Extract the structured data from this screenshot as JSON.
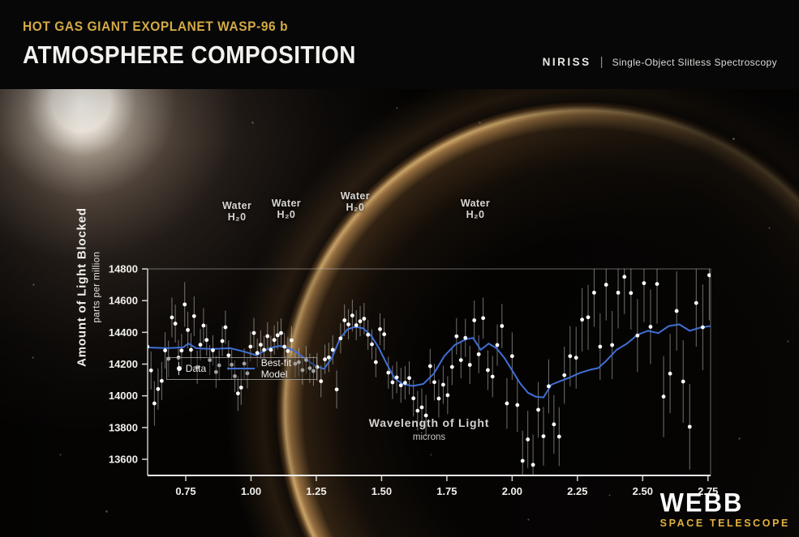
{
  "header": {
    "kicker": "HOT GAS GIANT EXOPLANET WASP-96 b",
    "title": "ATMOSPHERE COMPOSITION",
    "instrument": "NIRISS",
    "separator": "|",
    "mode": "Single-Object Slitless Spectroscopy"
  },
  "branding": {
    "name": "WEBB",
    "subtitle": "SPACE TELESCOPE"
  },
  "colors": {
    "accent_gold": "#d2a945",
    "model_blue": "#3f6fd4",
    "point_white": "#ffffff",
    "axis_text": "#f1efeb",
    "background": "#050403"
  },
  "chart_data": {
    "type": "scatter",
    "xlabel": "Wavelength of Light",
    "xlabel_sub": "microns",
    "ylabel": "Amount of Light Blocked",
    "ylabel_sub": "parts per million",
    "xlim": [
      0.604,
      2.76
    ],
    "ylim": [
      13498,
      14800
    ],
    "grid": false,
    "x_ticks": [
      0.75,
      1.0,
      1.25,
      1.5,
      1.75,
      2.0,
      2.25,
      2.5,
      2.75
    ],
    "x_tick_labels": [
      "0.75",
      "1.00",
      "1.25",
      "1.50",
      "1.75",
      "2.00",
      "2.25",
      "2.50",
      "2.75"
    ],
    "y_ticks": [
      14800,
      14600,
      14400,
      14200,
      14000,
      13800,
      13600
    ],
    "y_tick_labels": [
      "14800",
      "14600",
      "14400",
      "14200",
      "14000",
      "13800",
      "13600"
    ],
    "legend": {
      "position": "lower-left",
      "data_label": "Data",
      "model_label": "Best-fit Model"
    },
    "annotations": [
      {
        "line1": "Water",
        "line2": "H₂0",
        "x": 0.946,
        "y_top": 14672
      },
      {
        "line1": "Water",
        "line2": "H₂0",
        "x": 1.135,
        "y_top": 14688
      },
      {
        "line1": "Water",
        "line2": "H₂0",
        "x": 1.399,
        "y_top": 14735
      },
      {
        "line1": "Water",
        "line2": "H₂0",
        "x": 1.859,
        "y_top": 14688
      }
    ],
    "series": [
      {
        "name": "Data",
        "type": "scatter_errorbar",
        "points": [
          [
            0.603,
            14310,
            110
          ],
          [
            0.617,
            14160,
            120
          ],
          [
            0.63,
            13952,
            140
          ],
          [
            0.644,
            14043,
            130
          ],
          [
            0.658,
            14094,
            120
          ],
          [
            0.671,
            14286,
            115
          ],
          [
            0.684,
            14233,
            115
          ],
          [
            0.697,
            14494,
            125
          ],
          [
            0.71,
            14455,
            120
          ],
          [
            0.722,
            14240,
            110
          ],
          [
            0.734,
            14285,
            105
          ],
          [
            0.746,
            14576,
            140
          ],
          [
            0.758,
            14415,
            115
          ],
          [
            0.77,
            14290,
            105
          ],
          [
            0.782,
            14502,
            125
          ],
          [
            0.794,
            14180,
            105
          ],
          [
            0.806,
            14322,
            100
          ],
          [
            0.818,
            14443,
            110
          ],
          [
            0.83,
            14352,
            100
          ],
          [
            0.842,
            14225,
            95
          ],
          [
            0.854,
            14287,
            95
          ],
          [
            0.866,
            14150,
            100
          ],
          [
            0.878,
            14192,
            95
          ],
          [
            0.89,
            14345,
            95
          ],
          [
            0.902,
            14432,
            105
          ],
          [
            0.914,
            14255,
            95
          ],
          [
            0.926,
            14196,
            95
          ],
          [
            0.938,
            14124,
            100
          ],
          [
            0.95,
            14015,
            110
          ],
          [
            0.962,
            14052,
            110
          ],
          [
            0.974,
            14203,
            95
          ],
          [
            0.986,
            14142,
            95
          ],
          [
            0.998,
            14310,
            95
          ],
          [
            1.011,
            14396,
            95
          ],
          [
            1.024,
            14270,
            90
          ],
          [
            1.037,
            14322,
            90
          ],
          [
            1.05,
            14290,
            88
          ],
          [
            1.063,
            14376,
            88
          ],
          [
            1.076,
            14290,
            88
          ],
          [
            1.089,
            14352,
            92
          ],
          [
            1.102,
            14382,
            88
          ],
          [
            1.115,
            14396,
            92
          ],
          [
            1.128,
            14310,
            88
          ],
          [
            1.141,
            14282,
            88
          ],
          [
            1.155,
            14350,
            88
          ],
          [
            1.169,
            14202,
            88
          ],
          [
            1.183,
            14212,
            92
          ],
          [
            1.197,
            14162,
            92
          ],
          [
            1.211,
            14226,
            88
          ],
          [
            1.225,
            14174,
            92
          ],
          [
            1.239,
            14156,
            92
          ],
          [
            1.253,
            14182,
            88
          ],
          [
            1.268,
            14092,
            100
          ],
          [
            1.283,
            14230,
            92
          ],
          [
            1.298,
            14242,
            92
          ],
          [
            1.313,
            14290,
            92
          ],
          [
            1.328,
            14040,
            120
          ],
          [
            1.343,
            14362,
            95
          ],
          [
            1.358,
            14476,
            100
          ],
          [
            1.373,
            14450,
            95
          ],
          [
            1.388,
            14506,
            100
          ],
          [
            1.403,
            14445,
            95
          ],
          [
            1.418,
            14470,
            95
          ],
          [
            1.433,
            14486,
            100
          ],
          [
            1.448,
            14385,
            95
          ],
          [
            1.463,
            14325,
            95
          ],
          [
            1.478,
            14212,
            95
          ],
          [
            1.494,
            14420,
            100
          ],
          [
            1.51,
            14388,
            100
          ],
          [
            1.526,
            14146,
            100
          ],
          [
            1.542,
            14085,
            105
          ],
          [
            1.558,
            14116,
            100
          ],
          [
            1.574,
            14066,
            110
          ],
          [
            1.59,
            14082,
            105
          ],
          [
            1.606,
            14112,
            105
          ],
          [
            1.622,
            13984,
            115
          ],
          [
            1.638,
            13906,
            125
          ],
          [
            1.654,
            13927,
            120
          ],
          [
            1.67,
            13876,
            130
          ],
          [
            1.686,
            14187,
            110
          ],
          [
            1.702,
            14086,
            115
          ],
          [
            1.719,
            13983,
            120
          ],
          [
            1.736,
            14070,
            120
          ],
          [
            1.753,
            14004,
            120
          ],
          [
            1.77,
            14182,
            115
          ],
          [
            1.787,
            14375,
            115
          ],
          [
            1.804,
            14225,
            115
          ],
          [
            1.821,
            14365,
            120
          ],
          [
            1.838,
            14195,
            120
          ],
          [
            1.855,
            14476,
            125
          ],
          [
            1.872,
            14262,
            120
          ],
          [
            1.889,
            14490,
            130
          ],
          [
            1.907,
            14162,
            125
          ],
          [
            1.925,
            14121,
            130
          ],
          [
            1.943,
            14320,
            130
          ],
          [
            1.961,
            14440,
            140
          ],
          [
            1.98,
            13952,
            160
          ],
          [
            2.0,
            14250,
            150
          ],
          [
            2.02,
            13942,
            170
          ],
          [
            2.04,
            13590,
            190
          ],
          [
            2.06,
            13725,
            180
          ],
          [
            2.08,
            13565,
            190
          ],
          [
            2.1,
            13912,
            175
          ],
          [
            2.12,
            13745,
            185
          ],
          [
            2.14,
            14060,
            170
          ],
          [
            2.16,
            13820,
            185
          ],
          [
            2.18,
            13743,
            185
          ],
          [
            2.2,
            14130,
            180
          ],
          [
            2.222,
            14250,
            190
          ],
          [
            2.245,
            14240,
            195
          ],
          [
            2.268,
            14480,
            200
          ],
          [
            2.291,
            14495,
            205
          ],
          [
            2.314,
            14650,
            215
          ],
          [
            2.337,
            14310,
            210
          ],
          [
            2.36,
            14700,
            225
          ],
          [
            2.383,
            14320,
            215
          ],
          [
            2.406,
            14650,
            225
          ],
          [
            2.43,
            14750,
            235
          ],
          [
            2.455,
            14648,
            230
          ],
          [
            2.48,
            14380,
            230
          ],
          [
            2.505,
            14710,
            245
          ],
          [
            2.53,
            14435,
            235
          ],
          [
            2.555,
            14705,
            250
          ],
          [
            2.58,
            13995,
            255
          ],
          [
            2.605,
            14140,
            250
          ],
          [
            2.63,
            14535,
            250
          ],
          [
            2.655,
            14090,
            260
          ],
          [
            2.68,
            13805,
            270
          ],
          [
            2.705,
            14585,
            275
          ],
          [
            2.73,
            14432,
            270
          ],
          [
            2.755,
            14760,
            285
          ],
          [
            2.775,
            13870,
            290
          ]
        ]
      },
      {
        "name": "Best-fit Model",
        "type": "line",
        "points": [
          [
            0.6,
            14305
          ],
          [
            0.68,
            14300
          ],
          [
            0.74,
            14305
          ],
          [
            0.76,
            14330
          ],
          [
            0.79,
            14300
          ],
          [
            0.85,
            14295
          ],
          [
            0.92,
            14300
          ],
          [
            0.97,
            14280
          ],
          [
            1.02,
            14255
          ],
          [
            1.07,
            14300
          ],
          [
            1.11,
            14315
          ],
          [
            1.16,
            14290
          ],
          [
            1.21,
            14230
          ],
          [
            1.25,
            14185
          ],
          [
            1.28,
            14170
          ],
          [
            1.31,
            14240
          ],
          [
            1.34,
            14360
          ],
          [
            1.37,
            14420
          ],
          [
            1.4,
            14435
          ],
          [
            1.43,
            14425
          ],
          [
            1.46,
            14380
          ],
          [
            1.49,
            14300
          ],
          [
            1.52,
            14200
          ],
          [
            1.55,
            14110
          ],
          [
            1.58,
            14075
          ],
          [
            1.62,
            14062
          ],
          [
            1.66,
            14075
          ],
          [
            1.7,
            14140
          ],
          [
            1.74,
            14250
          ],
          [
            1.78,
            14320
          ],
          [
            1.82,
            14355
          ],
          [
            1.85,
            14365
          ],
          [
            1.88,
            14290
          ],
          [
            1.91,
            14330
          ],
          [
            1.94,
            14300
          ],
          [
            1.97,
            14240
          ],
          [
            2.0,
            14160
          ],
          [
            2.03,
            14080
          ],
          [
            2.06,
            14020
          ],
          [
            2.09,
            13995
          ],
          [
            2.12,
            13990
          ],
          [
            2.15,
            14070
          ],
          [
            2.18,
            14090
          ],
          [
            2.22,
            14115
          ],
          [
            2.26,
            14145
          ],
          [
            2.3,
            14165
          ],
          [
            2.33,
            14175
          ],
          [
            2.36,
            14220
          ],
          [
            2.4,
            14290
          ],
          [
            2.44,
            14330
          ],
          [
            2.48,
            14385
          ],
          [
            2.52,
            14410
          ],
          [
            2.56,
            14395
          ],
          [
            2.6,
            14440
          ],
          [
            2.64,
            14450
          ],
          [
            2.68,
            14410
          ],
          [
            2.72,
            14430
          ],
          [
            2.76,
            14440
          ],
          [
            2.79,
            14430
          ]
        ]
      }
    ]
  }
}
